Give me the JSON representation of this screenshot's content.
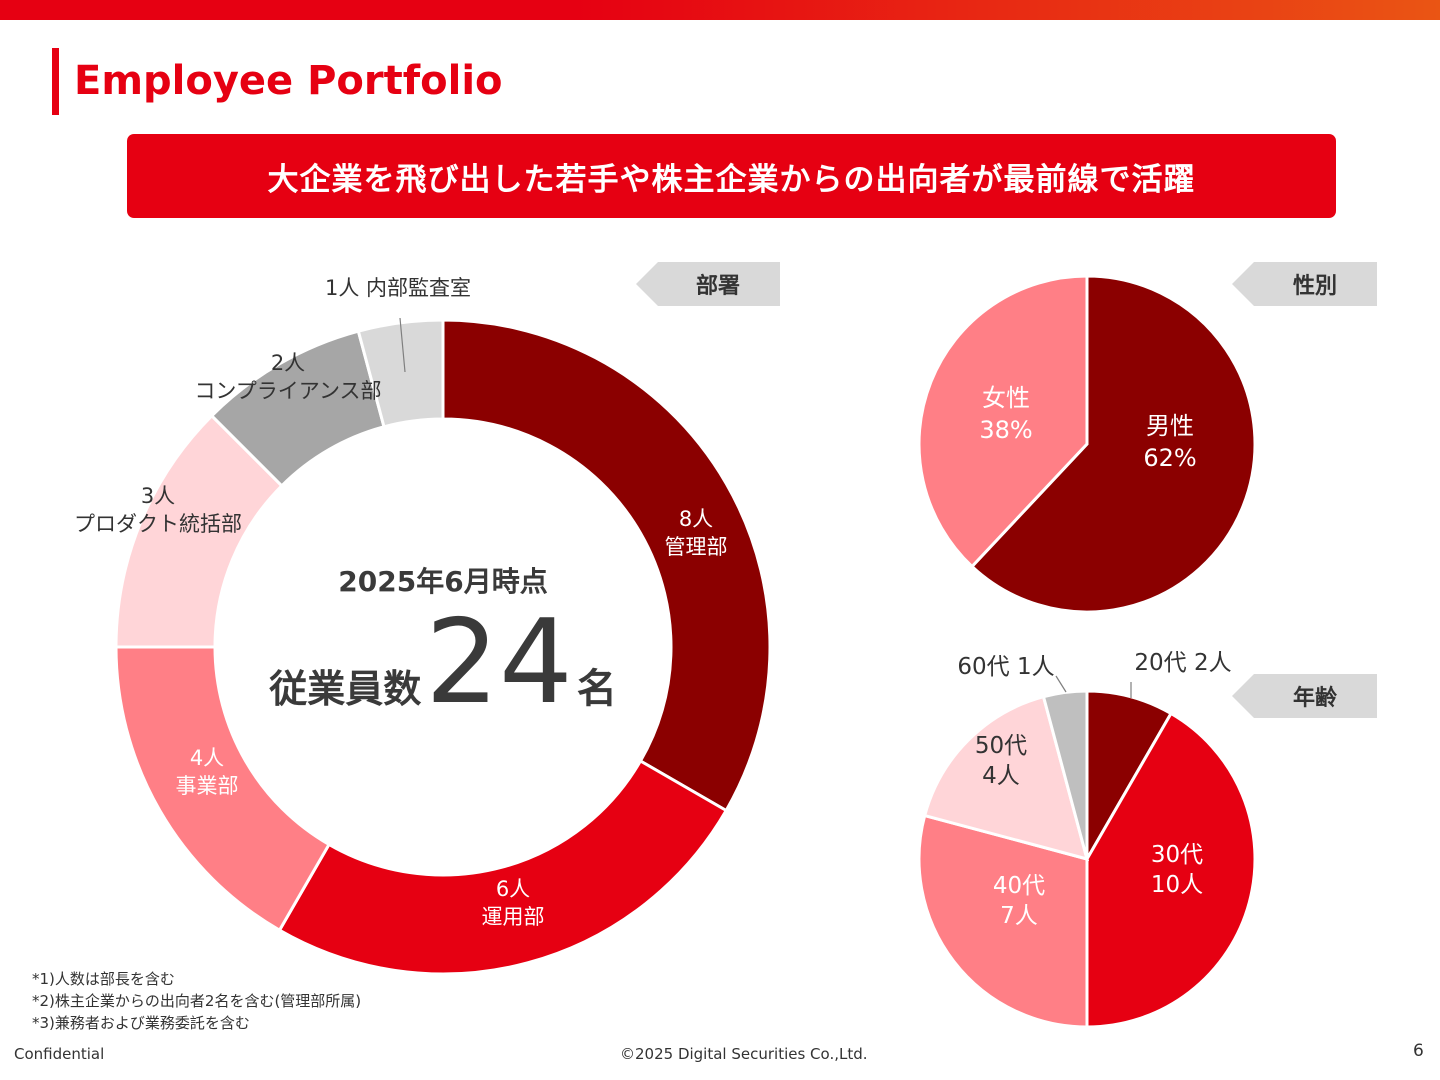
{
  "page": {
    "title": "Employee Portfolio",
    "banner": "大企業を飛び出した若手や株主企業からの出向者が最前線で活躍"
  },
  "tags": {
    "department": "部署",
    "gender": "性別",
    "age": "年齢"
  },
  "center": {
    "date_label": "2025年6月時点",
    "prefix": "従業員数",
    "count": "24",
    "suffix": "名"
  },
  "footnotes": [
    "*1)人数は部長を含む",
    "*2)株主企業からの出向者2名を含む(管理部所属)",
    "*3)兼務者および業務委託を含む"
  ],
  "footer": {
    "left": "Confidential",
    "center": "©2025 Digital Securities Co.,Ltd.",
    "page_number": "6"
  },
  "chart_data": [
    {
      "type": "pie",
      "variant": "donut",
      "categories": [
        "管理部",
        "運用部",
        "事業部",
        "プロダクト統括部",
        "コンプライアンス部",
        "内部監査室"
      ],
      "values": [
        8,
        6,
        4,
        3,
        2,
        1
      ],
      "labels": [
        [
          "8人",
          "管理部"
        ],
        [
          "6人",
          "運用部"
        ],
        [
          "4人",
          "事業部"
        ],
        [
          "3人",
          "プロダクト統括部"
        ],
        [
          "2人",
          "コンプライアンス部"
        ],
        [
          "1人 内部監査室"
        ]
      ],
      "colors": [
        "#8b0000",
        "#e60012",
        "#ff7f86",
        "#ffd5d8",
        "#a6a6a6",
        "#d9d9d9"
      ],
      "label_colors": [
        "#ffffff",
        "#ffffff",
        "#ffffff",
        "#333333",
        "#333333",
        "#333333"
      ]
    },
    {
      "type": "pie",
      "categories": [
        "男性",
        "女性"
      ],
      "values": [
        62,
        38
      ],
      "labels": [
        [
          "男性",
          "62%"
        ],
        [
          "女性",
          "38%"
        ]
      ],
      "colors": [
        "#8b0000",
        "#ff7f86"
      ],
      "label_colors": [
        "#ffffff",
        "#ffffff"
      ]
    },
    {
      "type": "pie",
      "categories": [
        "20代",
        "30代",
        "40代",
        "50代",
        "60代"
      ],
      "values": [
        2,
        10,
        7,
        4,
        1
      ],
      "labels": [
        [
          "20代 2人"
        ],
        [
          "30代",
          "10人"
        ],
        [
          "40代",
          "7人"
        ],
        [
          "50代",
          "4人"
        ],
        [
          "60代 1人"
        ]
      ],
      "colors": [
        "#8b0000",
        "#e60012",
        "#ff7f86",
        "#ffd5d8",
        "#bfbfbf"
      ],
      "label_colors": [
        "#333333",
        "#ffffff",
        "#ffffff",
        "#333333",
        "#333333"
      ]
    }
  ]
}
